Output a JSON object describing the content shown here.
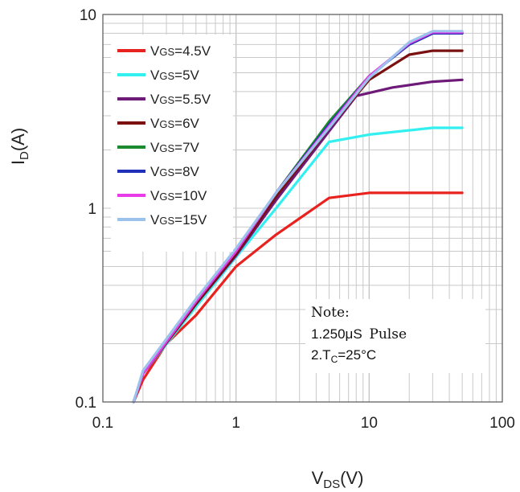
{
  "chart_data": {
    "type": "line",
    "xscale": "log",
    "yscale": "log",
    "xlim": [
      0.1,
      100
    ],
    "ylim": [
      0.1,
      10
    ],
    "grid": true,
    "legend_position": "top-left",
    "xlabel": {
      "main": "V",
      "sub": "DS",
      "suffix": "(V)"
    },
    "ylabel": {
      "main": "I",
      "sub": "D",
      "suffix": "(A)"
    },
    "x_ticks": [
      {
        "value": 0.1,
        "label": "0.1"
      },
      {
        "value": 1,
        "label": "1"
      },
      {
        "value": 10,
        "label": "10"
      },
      {
        "value": 100,
        "label": "100"
      }
    ],
    "y_ticks": [
      {
        "value": 0.1,
        "label": "0.1"
      },
      {
        "value": 1,
        "label": "1"
      },
      {
        "value": 10,
        "label": "10"
      }
    ],
    "series": [
      {
        "name_main": "V",
        "name_sub": "GS",
        "name_value": "=4.5V",
        "color": "#e8231f",
        "points": [
          [
            0.17,
            0.1
          ],
          [
            0.2,
            0.13
          ],
          [
            0.3,
            0.2
          ],
          [
            0.5,
            0.28
          ],
          [
            1,
            0.5
          ],
          [
            2,
            0.73
          ],
          [
            5,
            1.13
          ],
          [
            10,
            1.2
          ],
          [
            20,
            1.2
          ],
          [
            50,
            1.2
          ]
        ]
      },
      {
        "name_main": "V",
        "name_sub": "GS",
        "name_value": "=5V",
        "color": "#33f0f0",
        "points": [
          [
            0.17,
            0.1
          ],
          [
            0.2,
            0.14
          ],
          [
            0.5,
            0.31
          ],
          [
            1,
            0.56
          ],
          [
            2,
            1
          ],
          [
            5,
            2.2
          ],
          [
            10,
            2.4
          ],
          [
            30,
            2.6
          ],
          [
            50,
            2.6
          ]
        ]
      },
      {
        "name_main": "V",
        "name_sub": "GS",
        "name_value": "=5.5V",
        "color": "#6e1a78",
        "points": [
          [
            0.17,
            0.1
          ],
          [
            0.2,
            0.14
          ],
          [
            0.5,
            0.32
          ],
          [
            1,
            0.57
          ],
          [
            2,
            1.1
          ],
          [
            5,
            2.5
          ],
          [
            8,
            3.8
          ],
          [
            15,
            4.2
          ],
          [
            30,
            4.5
          ],
          [
            50,
            4.6
          ]
        ]
      },
      {
        "name_main": "V",
        "name_sub": "GS",
        "name_value": "=6V",
        "color": "#7a1010",
        "points": [
          [
            0.17,
            0.1
          ],
          [
            0.2,
            0.14
          ],
          [
            0.5,
            0.32
          ],
          [
            1,
            0.58
          ],
          [
            2,
            1.15
          ],
          [
            5,
            2.6
          ],
          [
            10,
            4.6
          ],
          [
            20,
            6.2
          ],
          [
            30,
            6.5
          ],
          [
            50,
            6.5
          ]
        ]
      },
      {
        "name_main": "V",
        "name_sub": "GS",
        "name_value": "=7V",
        "color": "#1c8a2e",
        "points": [
          [
            0.17,
            0.1
          ],
          [
            0.2,
            0.14
          ],
          [
            0.5,
            0.33
          ],
          [
            1,
            0.6
          ],
          [
            2,
            1.2
          ],
          [
            5,
            2.8
          ],
          [
            10,
            4.8
          ],
          [
            20,
            7
          ],
          [
            30,
            8
          ],
          [
            50,
            8
          ]
        ]
      },
      {
        "name_main": "V",
        "name_sub": "GS",
        "name_value": "=8V",
        "color": "#2130b8",
        "points": [
          [
            0.17,
            0.1
          ],
          [
            0.2,
            0.14
          ],
          [
            0.5,
            0.33
          ],
          [
            1,
            0.6
          ],
          [
            2,
            1.2
          ],
          [
            5,
            2.7
          ],
          [
            10,
            4.8
          ],
          [
            20,
            7
          ],
          [
            30,
            8
          ],
          [
            50,
            8
          ]
        ]
      },
      {
        "name_main": "V",
        "name_sub": "GS",
        "name_value": "=10V",
        "color": "#e83ce8",
        "points": [
          [
            0.17,
            0.1
          ],
          [
            0.2,
            0.14
          ],
          [
            0.5,
            0.33
          ],
          [
            1,
            0.6
          ],
          [
            2,
            1.2
          ],
          [
            5,
            2.65
          ],
          [
            10,
            4.8
          ],
          [
            20,
            7.1
          ],
          [
            30,
            8.1
          ],
          [
            50,
            8.1
          ]
        ]
      },
      {
        "name_main": "V",
        "name_sub": "GS",
        "name_value": "=15V",
        "color": "#9cc2ec",
        "points": [
          [
            0.17,
            0.1
          ],
          [
            0.2,
            0.145
          ],
          [
            0.5,
            0.34
          ],
          [
            1,
            0.62
          ],
          [
            2,
            1.2
          ],
          [
            5,
            2.6
          ],
          [
            10,
            4.7
          ],
          [
            20,
            7.2
          ],
          [
            30,
            8.2
          ],
          [
            50,
            8.2
          ]
        ]
      }
    ],
    "annotation": {
      "title": "Note:",
      "line1_a": "1.250μS",
      "line1_b": "Pulse",
      "line2_main": "2.T",
      "line2_sub": "C",
      "line2_suffix": "=25°C"
    }
  }
}
